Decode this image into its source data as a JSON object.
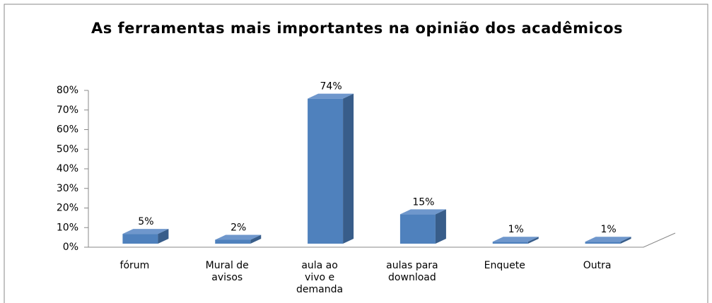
{
  "chart_data": {
    "type": "bar3d",
    "title": "As ferramentas mais importantes na opinião dos acadêmicos",
    "categories": [
      "fórum",
      "Mural de avisos",
      "aula ao vivo e demanda",
      "aulas para download",
      "Enquete",
      "Outra"
    ],
    "values": [
      5,
      2,
      74,
      15,
      1,
      1
    ],
    "value_labels": [
      "5%",
      "2%",
      "74%",
      "15%",
      "1%",
      "1%"
    ],
    "color": "#4f81bd",
    "ylim": [
      0,
      80
    ],
    "yticks": [
      {
        "value": 0,
        "label": "0%"
      },
      {
        "value": 10,
        "label": "10%"
      },
      {
        "value": 20,
        "label": "20%"
      },
      {
        "value": 30,
        "label": "30%"
      },
      {
        "value": 40,
        "label": "40%"
      },
      {
        "value": 50,
        "label": "50%"
      },
      {
        "value": 60,
        "label": "60%"
      },
      {
        "value": 70,
        "label": "70%"
      },
      {
        "value": 80,
        "label": "80%"
      }
    ]
  }
}
